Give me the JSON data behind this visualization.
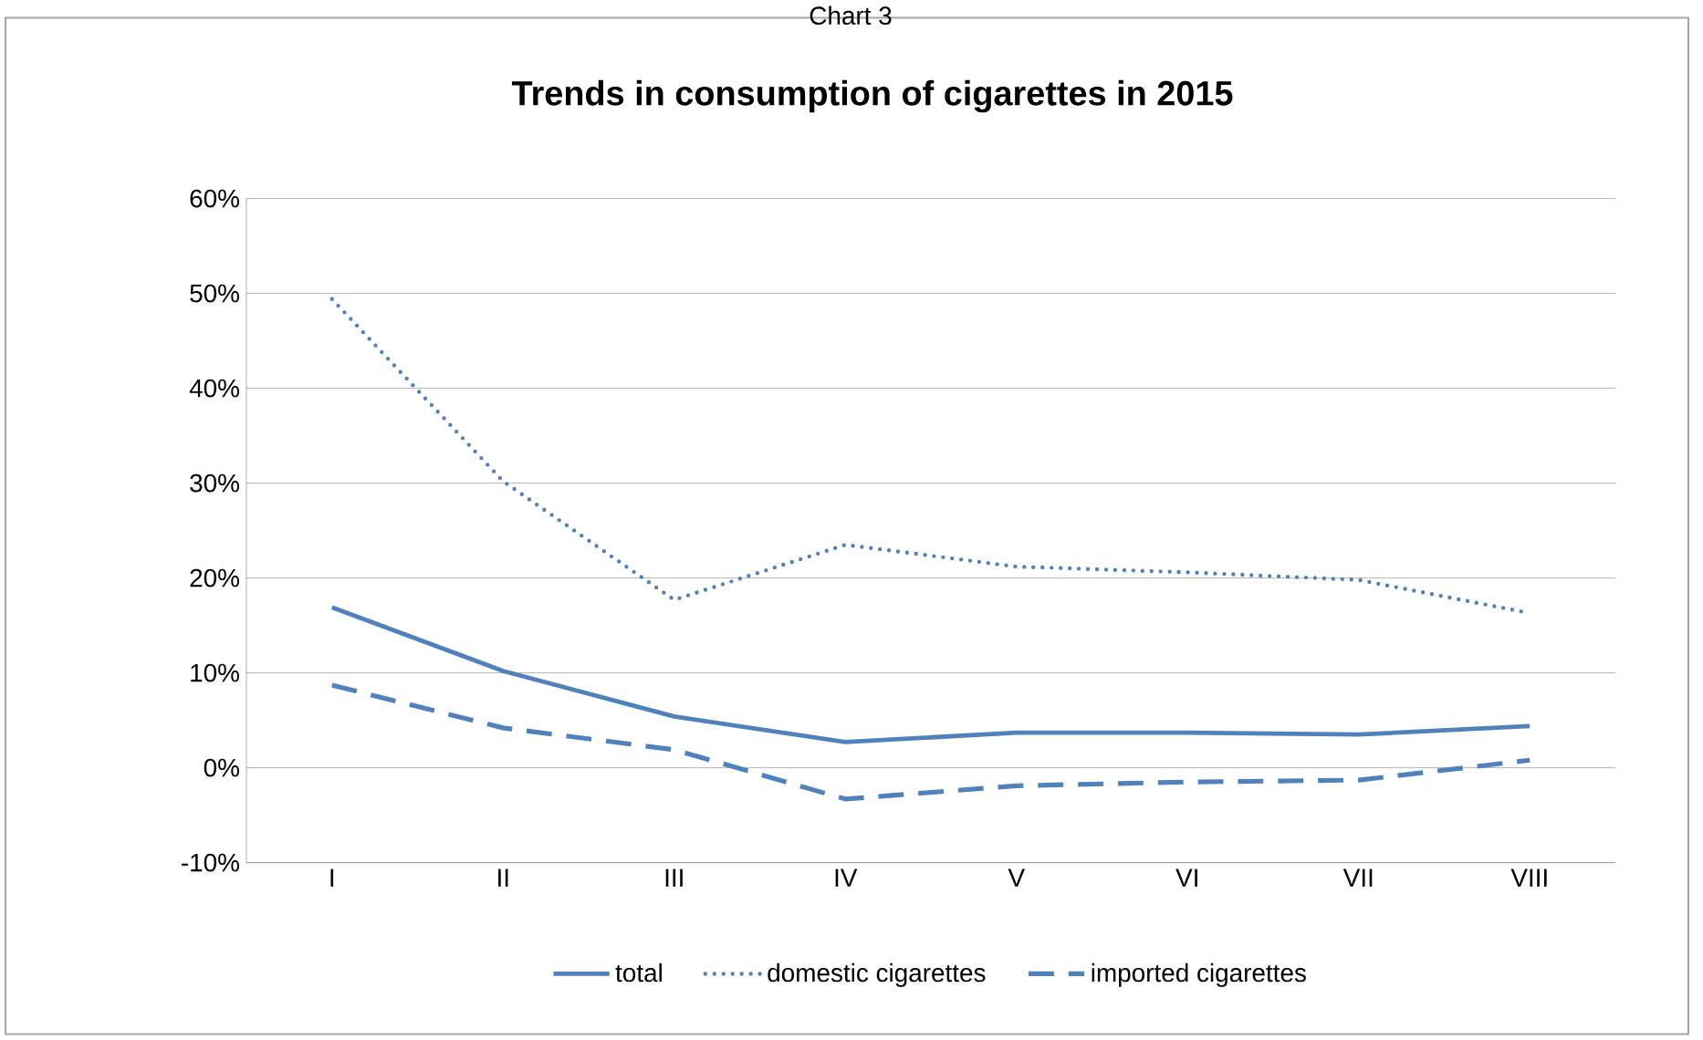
{
  "chart_data": {
    "type": "line",
    "title": "Trends in consumption of cigarettes in 2015",
    "annotations": [
      "Chart 3"
    ],
    "categories": [
      "I",
      "II",
      "III",
      "IV",
      "V",
      "VI",
      "VII",
      "VIII"
    ],
    "series": [
      {
        "name": "total",
        "color": "#4f81bd",
        "line_style": "solid",
        "values": [
          16.9,
          10.2,
          5.4,
          2.7,
          3.7,
          3.7,
          3.5,
          4.4
        ]
      },
      {
        "name": "domestic cigarettes",
        "color": "#4f81bd",
        "line_style": "dotted",
        "values": [
          49.4,
          30.2,
          17.7,
          23.5,
          21.2,
          20.6,
          19.8,
          16.3
        ]
      },
      {
        "name": "imported cigarettes",
        "color": "#4f81bd",
        "line_style": "dashed",
        "values": [
          8.7,
          4.2,
          1.9,
          -3.3,
          -1.9,
          -1.5,
          -1.3,
          0.8
        ]
      }
    ],
    "ylim": [
      -10,
      60
    ],
    "yticks": [
      {
        "value": -10,
        "label": "-10%"
      },
      {
        "value": 0,
        "label": "0%"
      },
      {
        "value": 10,
        "label": "10%"
      },
      {
        "value": 20,
        "label": "20%"
      },
      {
        "value": 30,
        "label": "30%"
      },
      {
        "value": 40,
        "label": "40%"
      },
      {
        "value": 50,
        "label": "50%"
      },
      {
        "value": 60,
        "label": "60%"
      }
    ],
    "grid": "y",
    "legend": "bottom",
    "marker": "none"
  }
}
